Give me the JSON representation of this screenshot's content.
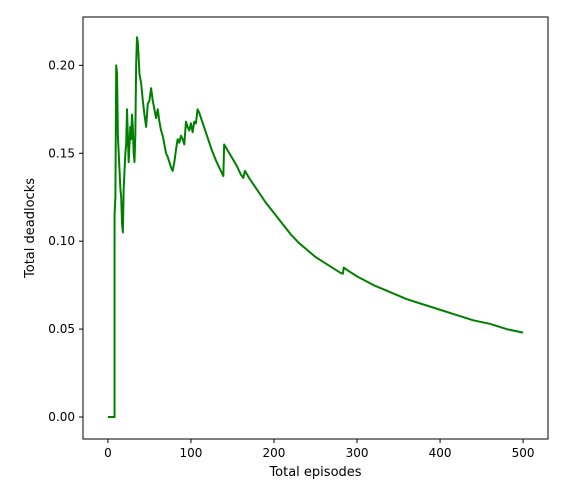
{
  "chart_data": {
    "type": "line",
    "xlabel": "Total episodes",
    "ylabel": "Total deadlocks",
    "xlim": [
      -30,
      530
    ],
    "ylim": [
      -0.0125,
      0.2275
    ],
    "xticks": [
      0,
      100,
      200,
      300,
      400,
      500
    ],
    "yticks": [
      0.0,
      0.05,
      0.1,
      0.15,
      0.2
    ],
    "xtick_labels": [
      "0",
      "100",
      "200",
      "300",
      "400",
      "500"
    ],
    "ytick_labels": [
      "0.00",
      "0.05",
      "0.10",
      "0.15",
      "0.20"
    ],
    "grid": false,
    "legend": "none",
    "series": [
      {
        "color": "#008000",
        "points": [
          [
            0,
            0.0
          ],
          [
            8,
            0.0
          ],
          [
            8,
            0.115
          ],
          [
            9,
            0.125
          ],
          [
            10,
            0.2
          ],
          [
            11,
            0.195
          ],
          [
            12,
            0.16
          ],
          [
            13,
            0.15
          ],
          [
            14,
            0.14
          ],
          [
            15,
            0.13
          ],
          [
            16,
            0.125
          ],
          [
            17,
            0.11
          ],
          [
            18,
            0.105
          ],
          [
            19,
            0.13
          ],
          [
            20,
            0.14
          ],
          [
            21,
            0.15
          ],
          [
            22,
            0.155
          ],
          [
            23,
            0.175
          ],
          [
            24,
            0.16
          ],
          [
            25,
            0.145
          ],
          [
            26,
            0.155
          ],
          [
            27,
            0.165
          ],
          [
            28,
            0.158
          ],
          [
            29,
            0.172
          ],
          [
            30,
            0.165
          ],
          [
            31,
            0.15
          ],
          [
            32,
            0.145
          ],
          [
            33,
            0.16
          ],
          [
            34,
            0.2
          ],
          [
            35,
            0.216
          ],
          [
            36,
            0.213
          ],
          [
            37,
            0.205
          ],
          [
            38,
            0.195
          ],
          [
            40,
            0.19
          ],
          [
            42,
            0.18
          ],
          [
            44,
            0.172
          ],
          [
            46,
            0.165
          ],
          [
            48,
            0.178
          ],
          [
            50,
            0.18
          ],
          [
            52,
            0.187
          ],
          [
            54,
            0.18
          ],
          [
            56,
            0.175
          ],
          [
            58,
            0.17
          ],
          [
            60,
            0.175
          ],
          [
            62,
            0.168
          ],
          [
            64,
            0.163
          ],
          [
            66,
            0.16
          ],
          [
            68,
            0.155
          ],
          [
            70,
            0.15
          ],
          [
            72,
            0.148
          ],
          [
            74,
            0.145
          ],
          [
            76,
            0.142
          ],
          [
            78,
            0.14
          ],
          [
            80,
            0.145
          ],
          [
            82,
            0.152
          ],
          [
            84,
            0.158
          ],
          [
            86,
            0.156
          ],
          [
            88,
            0.16
          ],
          [
            90,
            0.158
          ],
          [
            92,
            0.155
          ],
          [
            94,
            0.168
          ],
          [
            96,
            0.165
          ],
          [
            98,
            0.163
          ],
          [
            100,
            0.167
          ],
          [
            102,
            0.162
          ],
          [
            104,
            0.168
          ],
          [
            106,
            0.167
          ],
          [
            108,
            0.175
          ],
          [
            110,
            0.173
          ],
          [
            115,
            0.166
          ],
          [
            120,
            0.159
          ],
          [
            125,
            0.152
          ],
          [
            130,
            0.146
          ],
          [
            135,
            0.141
          ],
          [
            139,
            0.137
          ],
          [
            140,
            0.155
          ],
          [
            145,
            0.151
          ],
          [
            150,
            0.147
          ],
          [
            155,
            0.143
          ],
          [
            160,
            0.138
          ],
          [
            163,
            0.136
          ],
          [
            165,
            0.14
          ],
          [
            170,
            0.136
          ],
          [
            180,
            0.129
          ],
          [
            190,
            0.122
          ],
          [
            200,
            0.116
          ],
          [
            210,
            0.11
          ],
          [
            220,
            0.104
          ],
          [
            230,
            0.099
          ],
          [
            240,
            0.095
          ],
          [
            250,
            0.091
          ],
          [
            260,
            0.088
          ],
          [
            270,
            0.085
          ],
          [
            280,
            0.082
          ],
          [
            283,
            0.0815
          ],
          [
            284,
            0.085
          ],
          [
            290,
            0.083
          ],
          [
            300,
            0.08
          ],
          [
            320,
            0.075
          ],
          [
            340,
            0.071
          ],
          [
            360,
            0.067
          ],
          [
            380,
            0.064
          ],
          [
            400,
            0.061
          ],
          [
            420,
            0.058
          ],
          [
            440,
            0.055
          ],
          [
            460,
            0.053
          ],
          [
            480,
            0.05
          ],
          [
            500,
            0.048
          ]
        ]
      }
    ]
  }
}
